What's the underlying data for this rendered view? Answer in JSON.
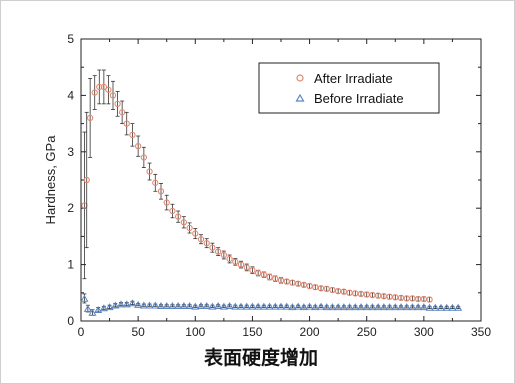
{
  "chart_data": {
    "type": "scatter",
    "title": "",
    "caption": "表面硬度增加",
    "xlabel": "",
    "ylabel": "Hardness, GPa",
    "xlim": [
      0,
      350
    ],
    "ylim": [
      0,
      5
    ],
    "xticks": [
      0,
      50,
      100,
      150,
      200,
      250,
      300,
      350
    ],
    "yticks": [
      0,
      1,
      2,
      3,
      4,
      5
    ],
    "grid": false,
    "legend_position": "top-right",
    "series": [
      {
        "name": "After Irradiate",
        "marker": "circle",
        "color": "#e2876f",
        "x": [
          3,
          5,
          8,
          12,
          16,
          20,
          24,
          28,
          32,
          36,
          40,
          45,
          50,
          55,
          60,
          65,
          70,
          75,
          80,
          85,
          90,
          95,
          100,
          105,
          110,
          115,
          120,
          125,
          130,
          135,
          140,
          145,
          150,
          155,
          160,
          165,
          170,
          175,
          180,
          185,
          190,
          195,
          200,
          205,
          210,
          215,
          220,
          225,
          230,
          235,
          240,
          245,
          250,
          255,
          260,
          265,
          270,
          275,
          280,
          285,
          290,
          295,
          300,
          305
        ],
        "y": [
          2.05,
          2.5,
          3.6,
          4.05,
          4.15,
          4.15,
          4.1,
          4.0,
          3.85,
          3.7,
          3.5,
          3.3,
          3.1,
          2.9,
          2.65,
          2.45,
          2.3,
          2.1,
          1.95,
          1.85,
          1.75,
          1.65,
          1.55,
          1.45,
          1.38,
          1.3,
          1.23,
          1.17,
          1.1,
          1.05,
          1.0,
          0.95,
          0.9,
          0.85,
          0.82,
          0.78,
          0.75,
          0.72,
          0.7,
          0.68,
          0.66,
          0.64,
          0.62,
          0.6,
          0.58,
          0.57,
          0.55,
          0.53,
          0.52,
          0.5,
          0.49,
          0.48,
          0.47,
          0.46,
          0.45,
          0.44,
          0.43,
          0.42,
          0.41,
          0.4,
          0.4,
          0.39,
          0.39,
          0.38
        ],
        "err": [
          1.3,
          1.2,
          0.7,
          0.3,
          0.3,
          0.3,
          0.25,
          0.25,
          0.22,
          0.2,
          0.2,
          0.2,
          0.18,
          0.18,
          0.15,
          0.15,
          0.14,
          0.13,
          0.12,
          0.1,
          0.1,
          0.09,
          0.09,
          0.08,
          0.08,
          0.08,
          0.07,
          0.07,
          0.07,
          0.06,
          0.06,
          0.06,
          0.06,
          0.05,
          0.05,
          0.05,
          0.05,
          0.05,
          0.04,
          0.04,
          0.04,
          0.04,
          0.04,
          0.04,
          0.04,
          0.04,
          0.04,
          0.04,
          0.04,
          0.04,
          0.04,
          0.04,
          0.04,
          0.04,
          0.04,
          0.04,
          0.04,
          0.04,
          0.04,
          0.04,
          0.04,
          0.04,
          0.04,
          0.04
        ]
      },
      {
        "name": "Before Irradiate",
        "marker": "triangle",
        "color": "#5b86c4",
        "x": [
          3,
          6,
          10,
          15,
          20,
          25,
          30,
          35,
          40,
          45,
          50,
          55,
          60,
          65,
          70,
          75,
          80,
          85,
          90,
          95,
          100,
          105,
          110,
          115,
          120,
          125,
          130,
          135,
          140,
          145,
          150,
          155,
          160,
          165,
          170,
          175,
          180,
          185,
          190,
          195,
          200,
          205,
          210,
          215,
          220,
          225,
          230,
          235,
          240,
          245,
          250,
          255,
          260,
          265,
          270,
          275,
          280,
          285,
          290,
          295,
          300,
          305,
          310,
          315,
          320,
          325,
          330
        ],
        "y": [
          0.4,
          0.22,
          0.15,
          0.2,
          0.23,
          0.25,
          0.28,
          0.3,
          0.3,
          0.32,
          0.29,
          0.28,
          0.28,
          0.28,
          0.27,
          0.27,
          0.27,
          0.27,
          0.27,
          0.27,
          0.26,
          0.27,
          0.27,
          0.26,
          0.27,
          0.26,
          0.27,
          0.26,
          0.26,
          0.26,
          0.26,
          0.26,
          0.26,
          0.26,
          0.26,
          0.26,
          0.26,
          0.25,
          0.26,
          0.25,
          0.26,
          0.25,
          0.26,
          0.25,
          0.25,
          0.25,
          0.25,
          0.25,
          0.25,
          0.25,
          0.25,
          0.25,
          0.25,
          0.25,
          0.25,
          0.25,
          0.25,
          0.25,
          0.25,
          0.25,
          0.25,
          0.24,
          0.24,
          0.24,
          0.24,
          0.24,
          0.24
        ],
        "err": [
          0.08,
          0.06,
          0.05,
          0.04,
          0.03,
          0.03,
          0.03,
          0.03,
          0.03,
          0.03,
          0.02,
          0.02,
          0.02,
          0.02,
          0.02,
          0.02,
          0.02,
          0.02,
          0.02,
          0.02,
          0.02,
          0.02,
          0.02,
          0.02,
          0.02,
          0.02,
          0.02,
          0.02,
          0.02,
          0.02,
          0.02,
          0.02,
          0.02,
          0.02,
          0.02,
          0.02,
          0.02,
          0.02,
          0.02,
          0.02,
          0.02,
          0.02,
          0.02,
          0.02,
          0.02,
          0.02,
          0.02,
          0.02,
          0.02,
          0.02,
          0.02,
          0.02,
          0.02,
          0.02,
          0.02,
          0.02,
          0.02,
          0.02,
          0.02,
          0.02,
          0.02,
          0.02,
          0.02,
          0.02,
          0.02,
          0.02,
          0.02
        ]
      }
    ]
  }
}
